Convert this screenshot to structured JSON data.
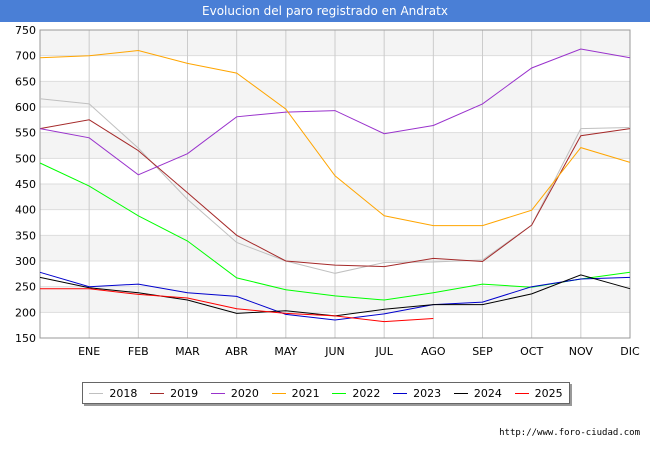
{
  "chart_data": {
    "type": "line",
    "title": "Evolucion del paro registrado en Andratx",
    "categories": [
      "",
      "ENE",
      "FEB",
      "MAR",
      "ABR",
      "MAY",
      "JUN",
      "JUL",
      "AGO",
      "SEP",
      "OCT",
      "NOV",
      "DIC"
    ],
    "ylim": [
      150,
      750
    ],
    "yticks": [
      150,
      200,
      250,
      300,
      350,
      400,
      450,
      500,
      550,
      600,
      650,
      700,
      750
    ],
    "legend_position": "bottom",
    "series": [
      {
        "name": "2018",
        "color": "#c0c0c0",
        "values": [
          616,
          606,
          520,
          420,
          336,
          300,
          276,
          297,
          298,
          302,
          370,
          558,
          560
        ]
      },
      {
        "name": "2019",
        "color": "#a52a2a",
        "values": [
          558,
          575,
          515,
          433,
          350,
          300,
          292,
          289,
          305,
          299,
          370,
          544,
          558
        ]
      },
      {
        "name": "2020",
        "color": "#9932cc",
        "values": [
          558,
          540,
          468,
          509,
          581,
          590,
          593,
          548,
          564,
          606,
          676,
          713,
          696
        ]
      },
      {
        "name": "2021",
        "color": "#ffa500",
        "values": [
          696,
          700,
          710,
          685,
          666,
          596,
          466,
          388,
          369,
          369,
          399,
          521,
          492
        ]
      },
      {
        "name": "2022",
        "color": "#00ff00",
        "values": [
          491,
          446,
          388,
          339,
          267,
          244,
          232,
          224,
          238,
          255,
          249,
          265,
          278
        ]
      },
      {
        "name": "2023",
        "color": "#0000cc",
        "values": [
          278,
          250,
          255,
          238,
          231,
          196,
          185,
          197,
          215,
          220,
          250,
          265,
          268
        ]
      },
      {
        "name": "2024",
        "color": "#000000",
        "values": [
          268,
          248,
          238,
          224,
          198,
          203,
          193,
          206,
          215,
          215,
          236,
          273,
          246
        ]
      },
      {
        "name": "2025",
        "color": "#ff0000",
        "values": [
          246,
          246,
          235,
          228,
          207,
          198,
          193,
          182,
          188,
          null,
          null,
          null,
          null
        ]
      }
    ]
  },
  "source": "http://www.foro-ciudad.com"
}
